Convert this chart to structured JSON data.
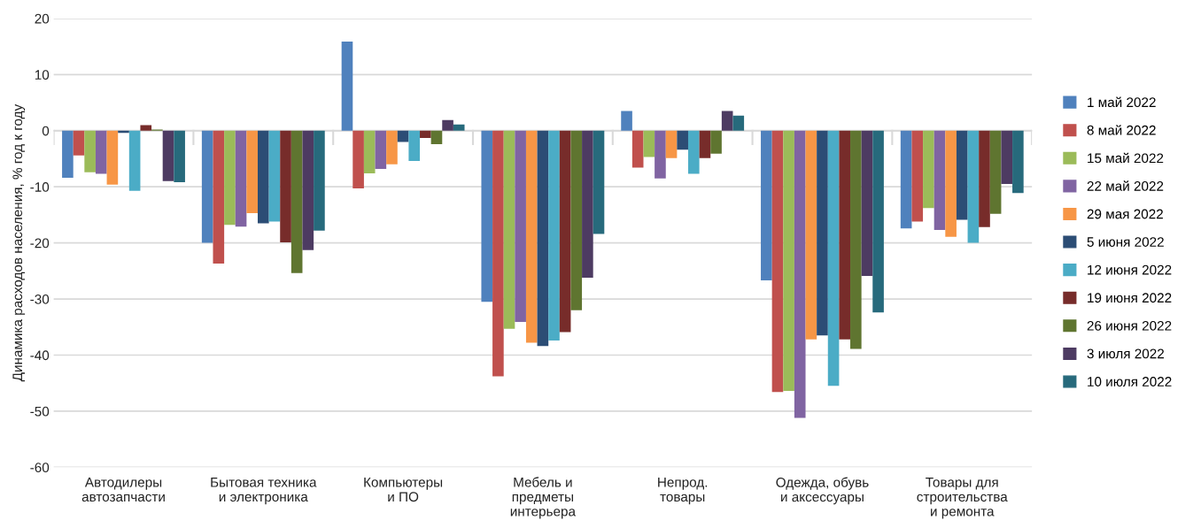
{
  "chart_data": {
    "type": "bar",
    "ylabel": "Динамика расходов населения, % год к году",
    "categories": [
      "Автодилеры\nавтозапчасти",
      "Бытовая техника\nи электроника",
      "Компьютеры\nи ПО",
      "Мебель и\nпредметы\nинтерьера",
      "Непрод.\nтовары",
      "Одежда, обувь\nи аксессуары",
      "Товары для\nстроительства\nи ремонта"
    ],
    "series": [
      {
        "name": "1 май 2022",
        "color": "#4f81bd",
        "values": [
          -8.4,
          -20.0,
          15.9,
          -30.5,
          3.5,
          -26.7,
          -17.4
        ]
      },
      {
        "name": "8 май 2022",
        "color": "#c0504d",
        "values": [
          -4.4,
          -23.7,
          -10.3,
          -43.8,
          -6.6,
          -46.6,
          -16.2
        ]
      },
      {
        "name": "15 май 2022",
        "color": "#9bbb59",
        "values": [
          -7.4,
          -16.8,
          -7.6,
          -35.3,
          -4.7,
          -46.4,
          -13.8
        ]
      },
      {
        "name": "22 май 2022",
        "color": "#8064a2",
        "values": [
          -7.7,
          -17.1,
          -6.8,
          -34.1,
          -8.5,
          -51.2,
          -17.7
        ]
      },
      {
        "name": "29 мая 2022",
        "color": "#f79646",
        "values": [
          -9.6,
          -14.7,
          -6.0,
          -37.8,
          -4.9,
          -37.2,
          -18.9
        ]
      },
      {
        "name": "5 июня 2022",
        "color": "#2c4d75",
        "values": [
          -0.4,
          -16.5,
          -2.0,
          -38.4,
          -3.4,
          -36.5,
          -15.9
        ]
      },
      {
        "name": "12 июня 2022",
        "color": "#4bacc6",
        "values": [
          -10.7,
          -16.2,
          -5.4,
          -37.4,
          -7.7,
          -45.5,
          -20.0
        ]
      },
      {
        "name": "19 июня 2022",
        "color": "#772c2a",
        "values": [
          1.0,
          -19.9,
          -1.3,
          -35.9,
          -4.9,
          -37.2,
          -17.2
        ]
      },
      {
        "name": "26 июня 2022",
        "color": "#5f7530",
        "values": [
          0.2,
          -25.4,
          -2.4,
          -32.0,
          -4.1,
          -38.9,
          -14.8
        ]
      },
      {
        "name": "3 июля 2022",
        "color": "#4d3b62",
        "values": [
          -9.0,
          -21.3,
          1.9,
          -26.2,
          3.5,
          -25.9,
          -9.5
        ]
      },
      {
        "name": "10 июля 2022",
        "color": "#276a7c",
        "values": [
          -9.2,
          -17.8,
          1.1,
          -18.4,
          2.7,
          -32.4,
          -11.1
        ]
      }
    ],
    "ylim": [
      -60,
      20
    ],
    "yticks": [
      -60,
      -50,
      -40,
      -30,
      -20,
      -10,
      0,
      10,
      20
    ],
    "grid": "y",
    "legend": "right"
  }
}
